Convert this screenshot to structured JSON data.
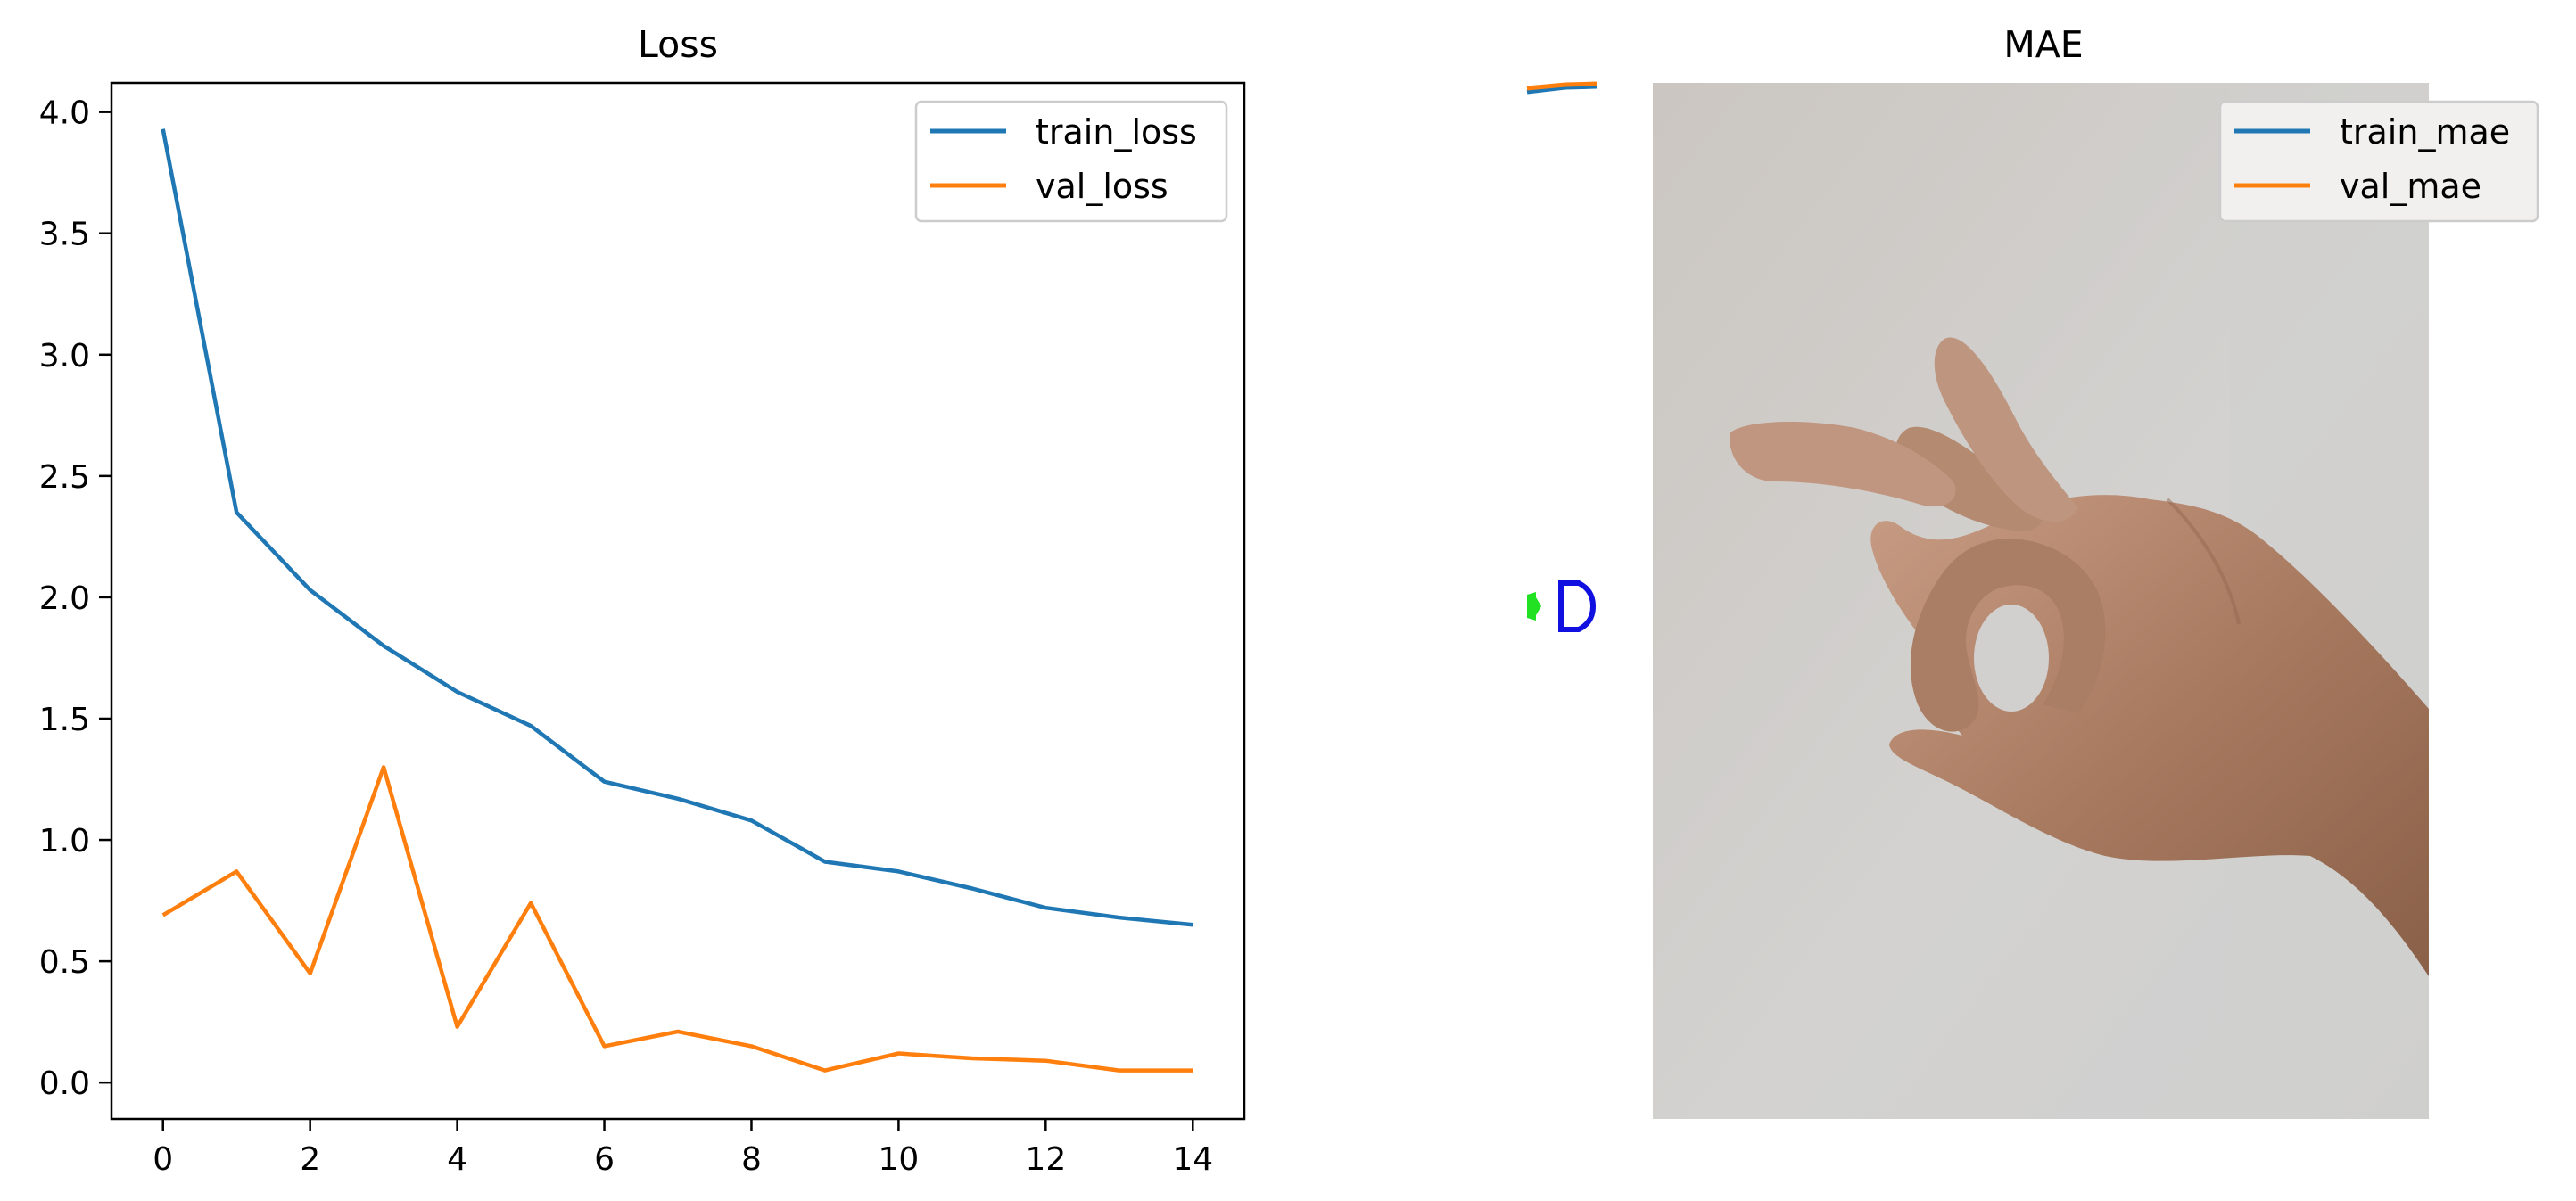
{
  "chart_data": [
    {
      "type": "line",
      "title": "Loss",
      "xlabel": "",
      "ylabel": "",
      "x": [
        0,
        1,
        2,
        3,
        4,
        5,
        6,
        7,
        8,
        9,
        10,
        11,
        12,
        13,
        14
      ],
      "xlim": [
        -0.7,
        14.7
      ],
      "ylim": [
        -0.15,
        4.12
      ],
      "xticks": [
        0,
        2,
        4,
        6,
        8,
        10,
        12,
        14
      ],
      "xtick_labels": [
        "0",
        "2",
        "4",
        "6",
        "8",
        "10",
        "12",
        "14"
      ],
      "yticks": [
        0.0,
        0.5,
        1.0,
        1.5,
        2.0,
        2.5,
        3.0,
        3.5,
        4.0
      ],
      "ytick_labels": [
        "0.0",
        "0.5",
        "1.0",
        "1.5",
        "2.0",
        "2.5",
        "3.0",
        "3.5",
        "4.0"
      ],
      "grid": false,
      "legend_position": "top-right",
      "series": [
        {
          "name": "train_loss",
          "color": "#1f77b4",
          "values": [
            3.93,
            2.35,
            2.03,
            1.8,
            1.61,
            1.47,
            1.24,
            1.17,
            1.08,
            0.91,
            0.87,
            0.8,
            0.72,
            0.68,
            0.65
          ]
        },
        {
          "name": "val_loss",
          "color": "#ff7f0e",
          "values": [
            0.69,
            0.87,
            0.45,
            1.3,
            0.23,
            0.74,
            0.15,
            0.21,
            0.15,
            0.05,
            0.12,
            0.1,
            0.09,
            0.05,
            0.05
          ]
        }
      ]
    },
    {
      "type": "line",
      "title": "MAE",
      "xlabel": "",
      "ylabel": "",
      "grid": false,
      "legend_position": "top-right",
      "photo": "hand-gesture-photo",
      "series": [
        {
          "name": "train_mae",
          "color": "#1f77b4"
        },
        {
          "name": "val_mae",
          "color": "#ff7f0e"
        }
      ]
    }
  ]
}
